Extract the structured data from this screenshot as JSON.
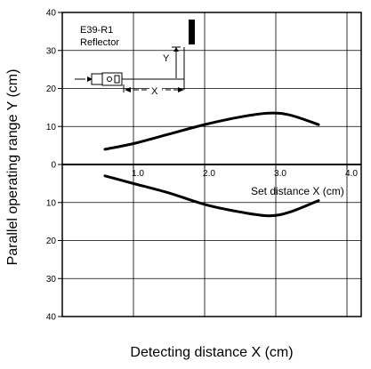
{
  "chart_data": {
    "type": "line",
    "xlabel": "Detecting distance X (cm)",
    "ylabel": "Parallel operating range Y  (cm)",
    "x_ticks": [
      "1.0",
      "2.0",
      "3.0",
      "4.0"
    ],
    "y_ticks_top": [
      "40",
      "30",
      "20",
      "10",
      "0"
    ],
    "y_ticks_bottom": [
      "10",
      "20",
      "30",
      "40"
    ],
    "xlim": [
      0,
      4.2
    ],
    "ylim": [
      -40,
      40
    ],
    "annotation": "Set distance X (cm)",
    "inset": {
      "line1": "E39-R1",
      "line2": "Reflector",
      "y_label": "Y",
      "x_label": "X"
    },
    "series": [
      {
        "x": [
          0.6,
          1.0,
          1.5,
          2.0,
          2.5,
          2.9,
          3.2,
          3.6
        ],
        "y": [
          4,
          5.5,
          8,
          10.5,
          12.5,
          13.5,
          13,
          10.5
        ]
      },
      {
        "x": [
          0.6,
          1.0,
          1.5,
          2.0,
          2.5,
          2.9,
          3.2,
          3.6
        ],
        "y": [
          -3,
          -5,
          -7.5,
          -10.5,
          -12.5,
          -13.5,
          -12.5,
          -9.5
        ]
      }
    ],
    "grid": true
  }
}
